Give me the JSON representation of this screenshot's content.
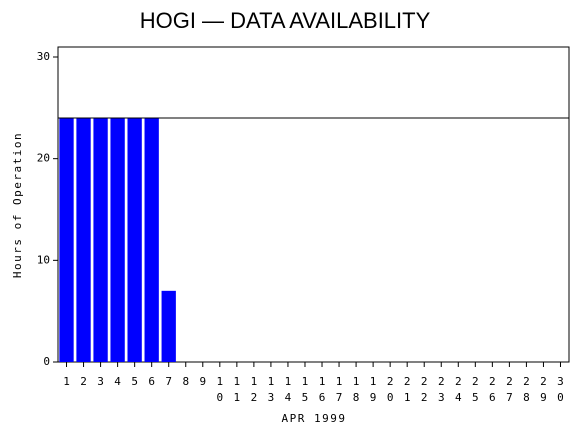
{
  "chart_data": {
    "type": "bar",
    "title": "HOGI — DATA AVAILABILITY",
    "y_label": "Hours of Operation",
    "x_label": "APR 1999",
    "categories": [
      "1",
      "2",
      "3",
      "4",
      "5",
      "6",
      "7",
      "8",
      "9",
      "10",
      "11",
      "12",
      "13",
      "14",
      "15",
      "16",
      "17",
      "18",
      "19",
      "20",
      "21",
      "22",
      "23",
      "24",
      "25",
      "26",
      "27",
      "28",
      "29",
      "30"
    ],
    "values": [
      24,
      24,
      24,
      24,
      24,
      24,
      7,
      0,
      0,
      0,
      0,
      0,
      0,
      0,
      0,
      0,
      0,
      0,
      0,
      0,
      0,
      0,
      0,
      0,
      0,
      0,
      0,
      0,
      0,
      0
    ],
    "color": "#0000ff",
    "hline": 24,
    "ylim": [
      0,
      30
    ],
    "yticks": [
      0,
      10,
      20,
      30
    ]
  }
}
